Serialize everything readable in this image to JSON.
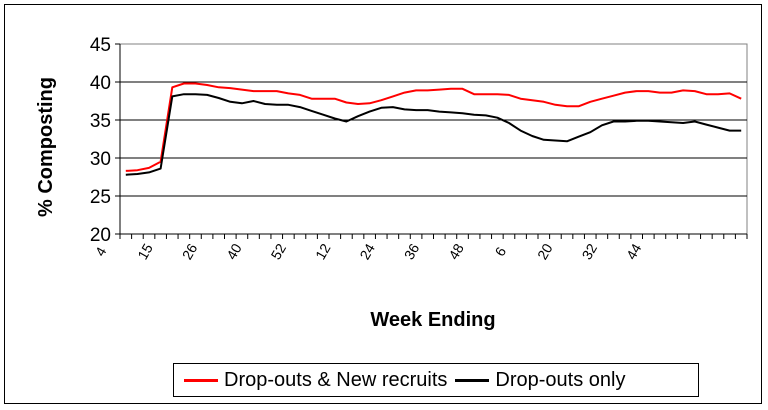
{
  "chart_data": {
    "type": "line",
    "xlabel": "Week Ending",
    "ylabel": "% Composting",
    "ylim": [
      20,
      45
    ],
    "yticks": [
      20,
      25,
      30,
      35,
      40,
      45
    ],
    "x_tick_labels": [
      "4",
      "15",
      "26",
      "40",
      "52",
      "12",
      "24",
      "36",
      "48",
      "6",
      "20",
      "32",
      "44"
    ],
    "grid": "horizontal",
    "legend_position": "bottom",
    "series": [
      {
        "name": "Drop-outs & New recruits",
        "color": "#ff0000",
        "values": [
          28.3,
          28.4,
          28.7,
          29.5,
          39.3,
          39.8,
          39.8,
          39.6,
          39.3,
          39.2,
          39.0,
          38.8,
          38.8,
          38.8,
          38.5,
          38.3,
          37.8,
          37.8,
          37.8,
          37.3,
          37.1,
          37.2,
          37.6,
          38.1,
          38.6,
          38.9,
          38.9,
          39.0,
          39.1,
          39.1,
          38.4,
          38.4,
          38.4,
          38.3,
          37.8,
          37.6,
          37.4,
          37.0,
          36.8,
          36.8,
          37.4,
          37.8,
          38.2,
          38.6,
          38.8,
          38.8,
          38.6,
          38.6,
          38.9,
          38.8,
          38.4,
          38.4,
          38.5,
          37.8
        ]
      },
      {
        "name": "Drop-outs only",
        "color": "#000000",
        "values": [
          27.8,
          27.9,
          28.1,
          28.6,
          38.1,
          38.4,
          38.4,
          38.3,
          37.9,
          37.4,
          37.2,
          37.5,
          37.1,
          37.0,
          37.0,
          36.7,
          36.2,
          35.7,
          35.2,
          34.8,
          35.5,
          36.1,
          36.6,
          36.7,
          36.4,
          36.3,
          36.3,
          36.1,
          36.0,
          35.9,
          35.7,
          35.6,
          35.3,
          34.6,
          33.6,
          32.9,
          32.4,
          32.3,
          32.2,
          32.8,
          33.4,
          34.3,
          34.8,
          34.8,
          34.9,
          34.9,
          34.8,
          34.7,
          34.6,
          34.8,
          34.4,
          34.0,
          33.6,
          33.6
        ]
      }
    ]
  }
}
